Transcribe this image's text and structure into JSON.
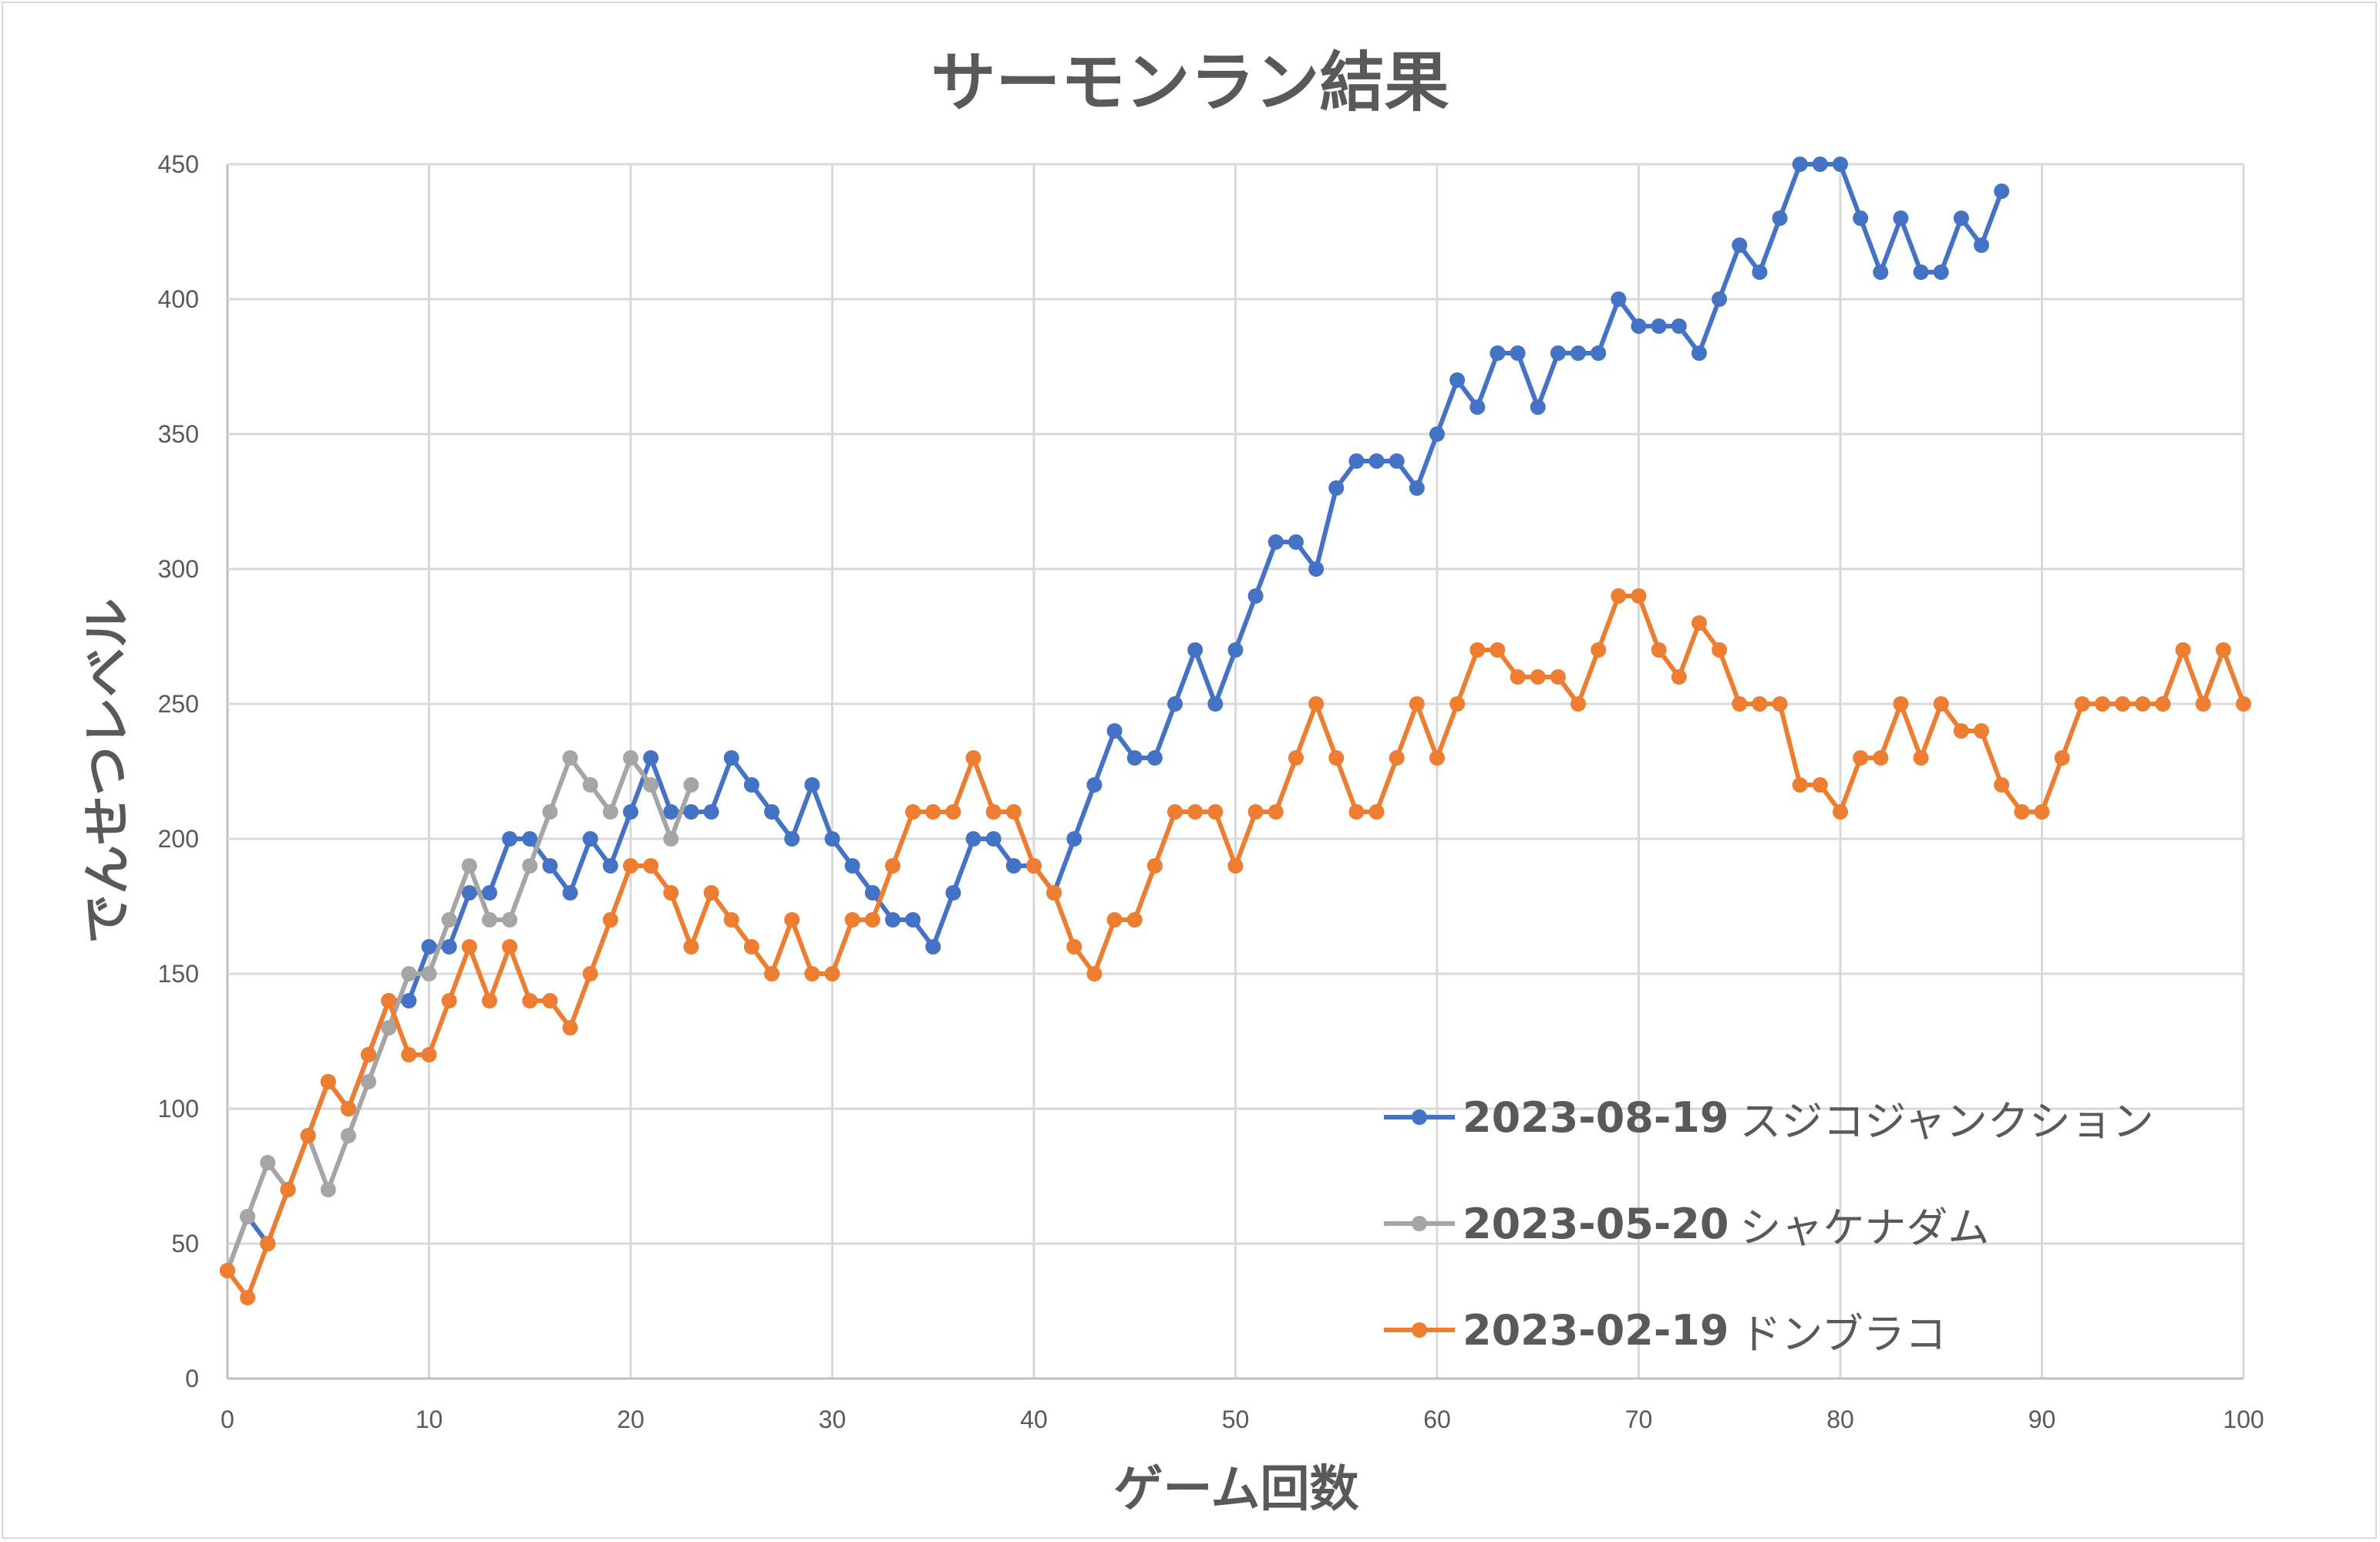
{
  "chart_data": {
    "type": "line",
    "title": "サーモンラン結果",
    "xlabel": "ゲーム回数",
    "ylabel": "でんせつレベル",
    "xlim": [
      0,
      100
    ],
    "ylim": [
      0,
      450
    ],
    "xticks": [
      0,
      10,
      20,
      30,
      40,
      50,
      60,
      70,
      80,
      90,
      100
    ],
    "yticks": [
      0,
      50,
      100,
      150,
      200,
      250,
      300,
      350,
      400,
      450
    ],
    "grid": true,
    "legend_position": "bottom-right",
    "series": [
      {
        "name": "2023-08-19 スジコジャンクション",
        "date": "2023-08-19",
        "stage": "スジコジャンクション",
        "color": "#4472c4",
        "values": [
          40,
          60,
          50,
          70,
          90,
          110,
          100,
          120,
          140,
          140,
          160,
          160,
          180,
          180,
          200,
          200,
          190,
          180,
          200,
          190,
          210,
          230,
          210,
          210,
          210,
          230,
          220,
          210,
          200,
          220,
          200,
          190,
          180,
          170,
          170,
          160,
          180,
          200,
          200,
          190,
          190,
          180,
          200,
          220,
          240,
          230,
          230,
          250,
          270,
          250,
          270,
          290,
          310,
          310,
          300,
          330,
          340,
          340,
          340,
          330,
          350,
          370,
          360,
          380,
          380,
          360,
          380,
          380,
          380,
          400,
          390,
          390,
          390,
          380,
          400,
          420,
          410,
          430,
          450,
          450,
          450,
          430,
          410,
          430,
          410,
          410,
          430,
          420,
          440
        ]
      },
      {
        "name": "2023-05-20 シャケナダム",
        "date": "2023-05-20",
        "stage": "シャケナダム",
        "color": "#a5a5a5",
        "values": [
          40,
          60,
          80,
          70,
          90,
          70,
          90,
          110,
          130,
          150,
          150,
          170,
          190,
          170,
          170,
          190,
          210,
          230,
          220,
          210,
          230,
          220,
          200,
          220
        ]
      },
      {
        "name": "2023-02-19 ドンブラコ",
        "date": "2023-02-19",
        "stage": "ドンブラコ",
        "color": "#ed7d31",
        "values": [
          40,
          30,
          50,
          70,
          90,
          110,
          100,
          120,
          140,
          120,
          120,
          140,
          160,
          140,
          160,
          140,
          140,
          130,
          150,
          170,
          190,
          190,
          180,
          160,
          180,
          170,
          160,
          150,
          170,
          150,
          150,
          170,
          170,
          190,
          210,
          210,
          210,
          230,
          210,
          210,
          190,
          180,
          160,
          150,
          170,
          170,
          190,
          210,
          210,
          210,
          190,
          210,
          210,
          230,
          250,
          230,
          210,
          210,
          230,
          250,
          230,
          250,
          270,
          270,
          260,
          260,
          260,
          250,
          270,
          290,
          290,
          270,
          260,
          280,
          270,
          250,
          250,
          250,
          220,
          220,
          210,
          230,
          230,
          250,
          230,
          250,
          240,
          240,
          220,
          210,
          210,
          230,
          250,
          250,
          250,
          250,
          250,
          270,
          250,
          270,
          250
        ]
      }
    ]
  }
}
